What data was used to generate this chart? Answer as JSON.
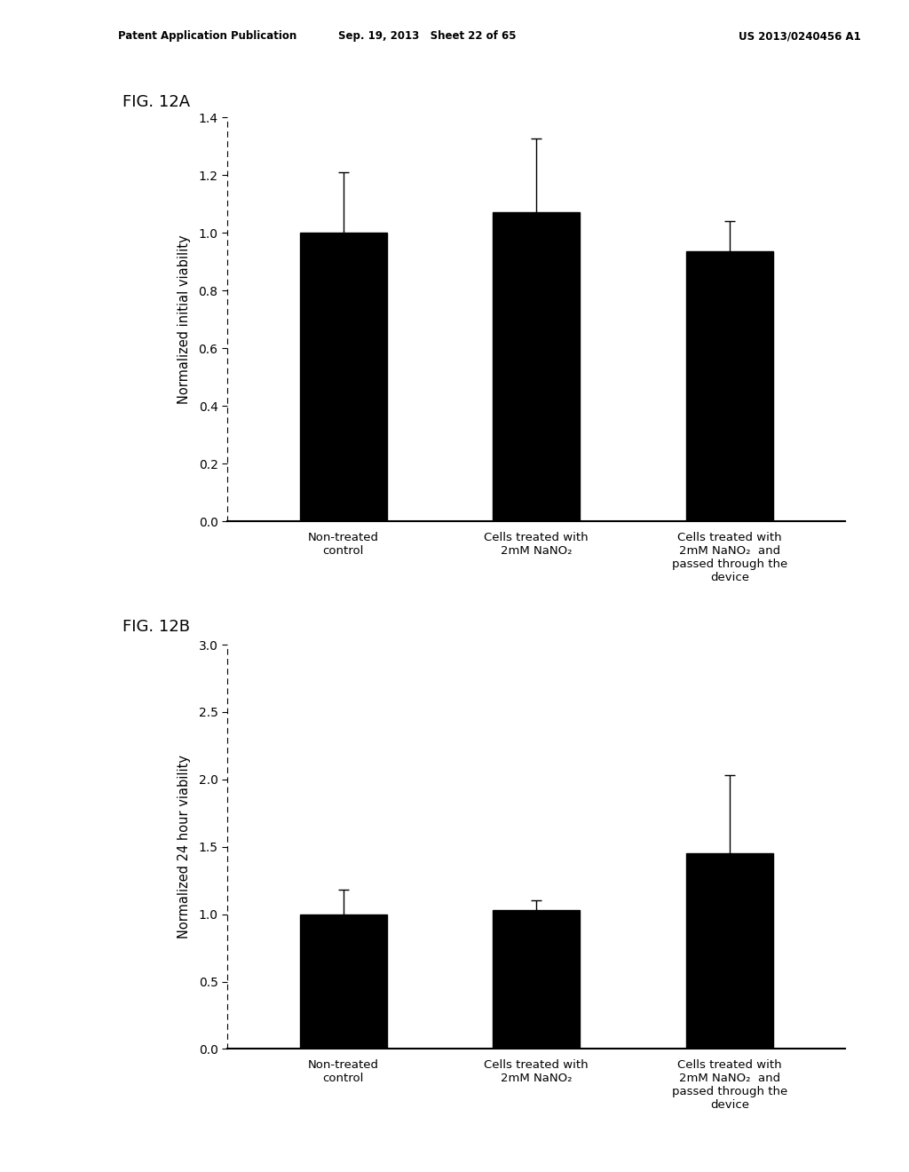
{
  "fig12a": {
    "title": "FIG. 12A",
    "ylabel": "Normalized initial viability",
    "categories": [
      "Non-treated\ncontrol",
      "Cells treated with\n2mM NaNO₂",
      "Cells treated with\n2mM NaNO₂  and\npassed through the\ndevice"
    ],
    "values": [
      1.0,
      1.07,
      0.935
    ],
    "errors": [
      0.21,
      0.255,
      0.105
    ],
    "ylim": [
      0,
      1.4
    ],
    "yticks": [
      0,
      0.2,
      0.4,
      0.6,
      0.8,
      1.0,
      1.2,
      1.4
    ],
    "bar_color": "#000000",
    "bar_width": 0.45
  },
  "fig12b": {
    "title": "FIG. 12B",
    "ylabel": "Normalized 24 hour viability",
    "categories": [
      "Non-treated\ncontrol",
      "Cells treated with\n2mM NaNO₂",
      "Cells treated with\n2mM NaNO₂  and\npassed through the\ndevice"
    ],
    "values": [
      1.0,
      1.03,
      1.45
    ],
    "errors": [
      0.18,
      0.075,
      0.58
    ],
    "ylim": [
      0,
      3.0
    ],
    "yticks": [
      0,
      0.5,
      1.0,
      1.5,
      2.0,
      2.5,
      3.0
    ],
    "bar_color": "#000000",
    "bar_width": 0.45
  },
  "header_left": "Patent Application Publication",
  "header_mid": "Sep. 19, 2013   Sheet 22 of 65",
  "header_right": "US 2013/0240456 A1",
  "background_color": "#ffffff",
  "text_color": "#000000",
  "fig_width": 10.24,
  "fig_height": 13.2,
  "dpi": 100
}
